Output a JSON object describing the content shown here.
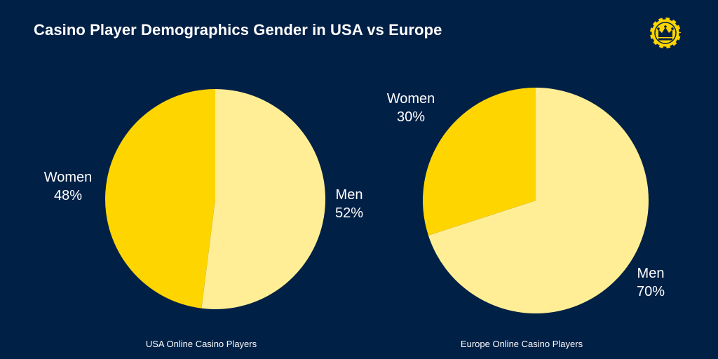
{
  "title": "Casino Player Demographics Gender in USA vs Europe",
  "logo": {
    "icon": "crown-chip-icon",
    "color": "#FFD500"
  },
  "colors": {
    "background": "#012046",
    "women": "#FFD500",
    "men": "#FFEE96"
  },
  "chart_data": [
    {
      "type": "pie",
      "title": "USA Online Casino Players",
      "slices": [
        {
          "label": "Men",
          "value": 52,
          "value_label": "52%",
          "color": "#FFEE96"
        },
        {
          "label": "Women",
          "value": 48,
          "value_label": "48%",
          "color": "#FFD500"
        }
      ],
      "start": "12 o'clock",
      "direction": "clockwise",
      "legend": "none"
    },
    {
      "type": "pie",
      "title": "Europe Online Casino Players",
      "slices": [
        {
          "label": "Men",
          "value": 70,
          "value_label": "70%",
          "color": "#FFEE96"
        },
        {
          "label": "Women",
          "value": 30,
          "value_label": "30%",
          "color": "#FFD500"
        }
      ],
      "start": "12 o'clock",
      "direction": "clockwise",
      "legend": "none"
    }
  ]
}
